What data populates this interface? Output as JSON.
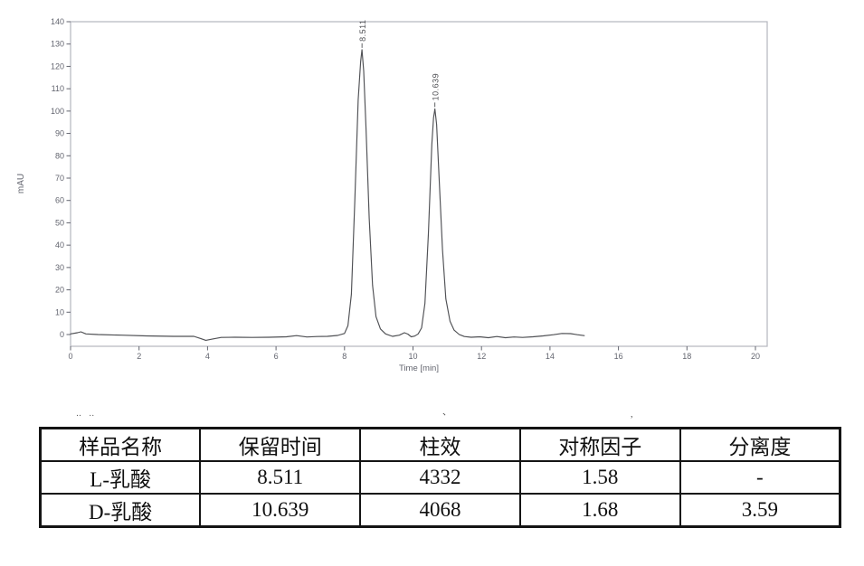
{
  "chart_data": {
    "type": "line",
    "title": "",
    "xlabel": "Time [min]",
    "ylabel": "mAU",
    "xlim": [
      0,
      20.4
    ],
    "ylim": [
      -5,
      140
    ],
    "xticks": [
      0,
      2,
      4,
      6,
      8,
      10,
      12,
      14,
      16,
      18,
      20
    ],
    "yticks": [
      0,
      10,
      20,
      30,
      40,
      50,
      60,
      70,
      80,
      90,
      100,
      110,
      120,
      130,
      140
    ],
    "grid": false,
    "legend": null,
    "peaks": [
      {
        "label": "8.511",
        "retention_min": 8.511,
        "apex_mau": 127.5
      },
      {
        "label": "10.639",
        "retention_min": 10.639,
        "apex_mau": 101
      }
    ],
    "trace": [
      [
        0,
        0.3
      ],
      [
        0.2,
        0.8
      ],
      [
        0.3,
        1.2
      ],
      [
        0.45,
        0.3
      ],
      [
        0.8,
        0
      ],
      [
        1.5,
        -0.3
      ],
      [
        2.2,
        -0.6
      ],
      [
        3.0,
        -0.8
      ],
      [
        3.6,
        -0.8
      ],
      [
        3.8,
        -1.8
      ],
      [
        3.95,
        -2.6
      ],
      [
        4.15,
        -2.0
      ],
      [
        4.4,
        -1.3
      ],
      [
        4.8,
        -1.2
      ],
      [
        5.3,
        -1.3
      ],
      [
        5.8,
        -1.2
      ],
      [
        6.3,
        -1.0
      ],
      [
        6.6,
        -0.5
      ],
      [
        6.9,
        -1.1
      ],
      [
        7.2,
        -0.9
      ],
      [
        7.5,
        -0.8
      ],
      [
        7.8,
        -0.4
      ],
      [
        8.0,
        0.5
      ],
      [
        8.1,
        4
      ],
      [
        8.2,
        18
      ],
      [
        8.3,
        60
      ],
      [
        8.4,
        105
      ],
      [
        8.47,
        122
      ],
      [
        8.511,
        127.5
      ],
      [
        8.56,
        118
      ],
      [
        8.63,
        92
      ],
      [
        8.72,
        52
      ],
      [
        8.82,
        22
      ],
      [
        8.92,
        8
      ],
      [
        9.05,
        2.5
      ],
      [
        9.2,
        0.3
      ],
      [
        9.4,
        -0.8
      ],
      [
        9.6,
        -0.3
      ],
      [
        9.75,
        0.8
      ],
      [
        9.85,
        0.2
      ],
      [
        9.95,
        -1.0
      ],
      [
        10.05,
        -0.7
      ],
      [
        10.15,
        0.3
      ],
      [
        10.25,
        3
      ],
      [
        10.35,
        14
      ],
      [
        10.45,
        45
      ],
      [
        10.55,
        85
      ],
      [
        10.6,
        97
      ],
      [
        10.639,
        101
      ],
      [
        10.69,
        94
      ],
      [
        10.77,
        68
      ],
      [
        10.86,
        38
      ],
      [
        10.96,
        16
      ],
      [
        11.08,
        6
      ],
      [
        11.2,
        2
      ],
      [
        11.35,
        0
      ],
      [
        11.5,
        -0.9
      ],
      [
        11.7,
        -1.2
      ],
      [
        11.95,
        -1.0
      ],
      [
        12.2,
        -1.4
      ],
      [
        12.45,
        -0.9
      ],
      [
        12.7,
        -1.4
      ],
      [
        12.95,
        -1.1
      ],
      [
        13.2,
        -1.3
      ],
      [
        13.5,
        -1.0
      ],
      [
        13.8,
        -0.6
      ],
      [
        14.1,
        -0.1
      ],
      [
        14.35,
        0.5
      ],
      [
        14.6,
        0.4
      ],
      [
        14.8,
        -0.1
      ],
      [
        15.0,
        -0.5
      ]
    ]
  },
  "table": {
    "headers": [
      "样品名称",
      "保留时间",
      "柱效",
      "对称因子",
      "分离度"
    ],
    "rows": [
      [
        "L-乳酸",
        "8.511",
        "4332",
        "1.58",
        "-"
      ],
      [
        "D-乳酸",
        "10.639",
        "4068",
        "1.68",
        "3.59"
      ]
    ]
  },
  "artifacts": {
    "left": "‥ ‥",
    "middle": "、",
    "right": ","
  },
  "colors": {
    "background": "#ffffff",
    "trace": "#4f5054",
    "axis_border": "#b4b6bf",
    "tick_label": "#63656f",
    "axis_label": "#63656f",
    "peak_label": "#4f5054",
    "table_border": "#141414",
    "table_text": "#101010"
  }
}
